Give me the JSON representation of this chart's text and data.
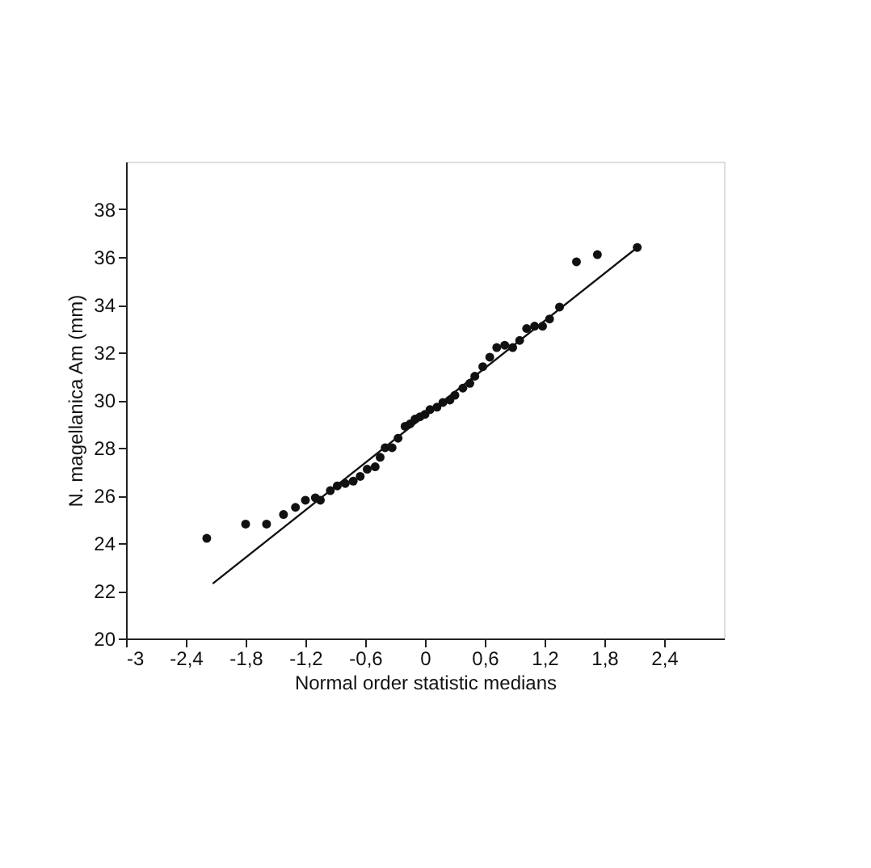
{
  "chart_data": {
    "type": "scatter",
    "xlabel": "Normal order statistic medians",
    "ylabel": "N. magellanica Am (mm)",
    "xlim": [
      -3,
      3
    ],
    "ylim": [
      20,
      40
    ],
    "xticks": [
      -3,
      {
        "value": -2.4,
        "label": "-2,4"
      },
      {
        "value": -1.8,
        "label": "-1,8"
      },
      {
        "value": -1.2,
        "label": "-1,2"
      },
      {
        "value": -0.6,
        "label": "-0,6"
      },
      0,
      {
        "value": 0.6,
        "label": "0,6"
      },
      {
        "value": 1.2,
        "label": "1,2"
      },
      {
        "value": 1.8,
        "label": "1,8"
      },
      {
        "value": 2.4,
        "label": "2,4"
      }
    ],
    "yticks": [
      20,
      22,
      24,
      26,
      28,
      30,
      32,
      34,
      36,
      38
    ],
    "grid": false,
    "series": [
      {
        "type": "scatter",
        "marker": "circle",
        "color": "#111111",
        "x": [
          -2.19,
          -1.8,
          -1.59,
          -1.42,
          -1.3,
          -1.2,
          -1.1,
          -1.05,
          -0.95,
          -0.88,
          -0.8,
          -0.72,
          -0.65,
          -0.58,
          -0.5,
          -0.45,
          -0.4,
          -0.33,
          -0.27,
          -0.2,
          -0.15,
          -0.1,
          -0.05,
          0,
          0.05,
          0.12,
          0.18,
          0.25,
          0.3,
          0.38,
          0.45,
          0.5,
          0.58,
          0.65,
          0.72,
          0.8,
          0.88,
          0.95,
          1.02,
          1.1,
          1.18,
          1.25,
          1.35,
          1.52,
          1.73,
          2.13
        ],
        "values": [
          24.2,
          24.8,
          24.8,
          25.2,
          25.5,
          25.8,
          25.9,
          25.8,
          26.2,
          26.4,
          26.5,
          26.6,
          26.8,
          27.1,
          27.2,
          27.6,
          28.0,
          28.0,
          28.4,
          28.9,
          29.0,
          29.2,
          29.3,
          29.4,
          29.6,
          29.7,
          29.9,
          30.0,
          30.2,
          30.5,
          30.7,
          31.0,
          31.4,
          31.8,
          32.2,
          32.3,
          32.2,
          32.5,
          33.0,
          33.1,
          33.1,
          33.4,
          33.9,
          35.8,
          36.1,
          36.4
        ]
      },
      {
        "type": "line",
        "color": "#111111",
        "x": [
          -2.13,
          2.13
        ],
        "values": [
          22.3,
          36.4
        ]
      }
    ]
  }
}
